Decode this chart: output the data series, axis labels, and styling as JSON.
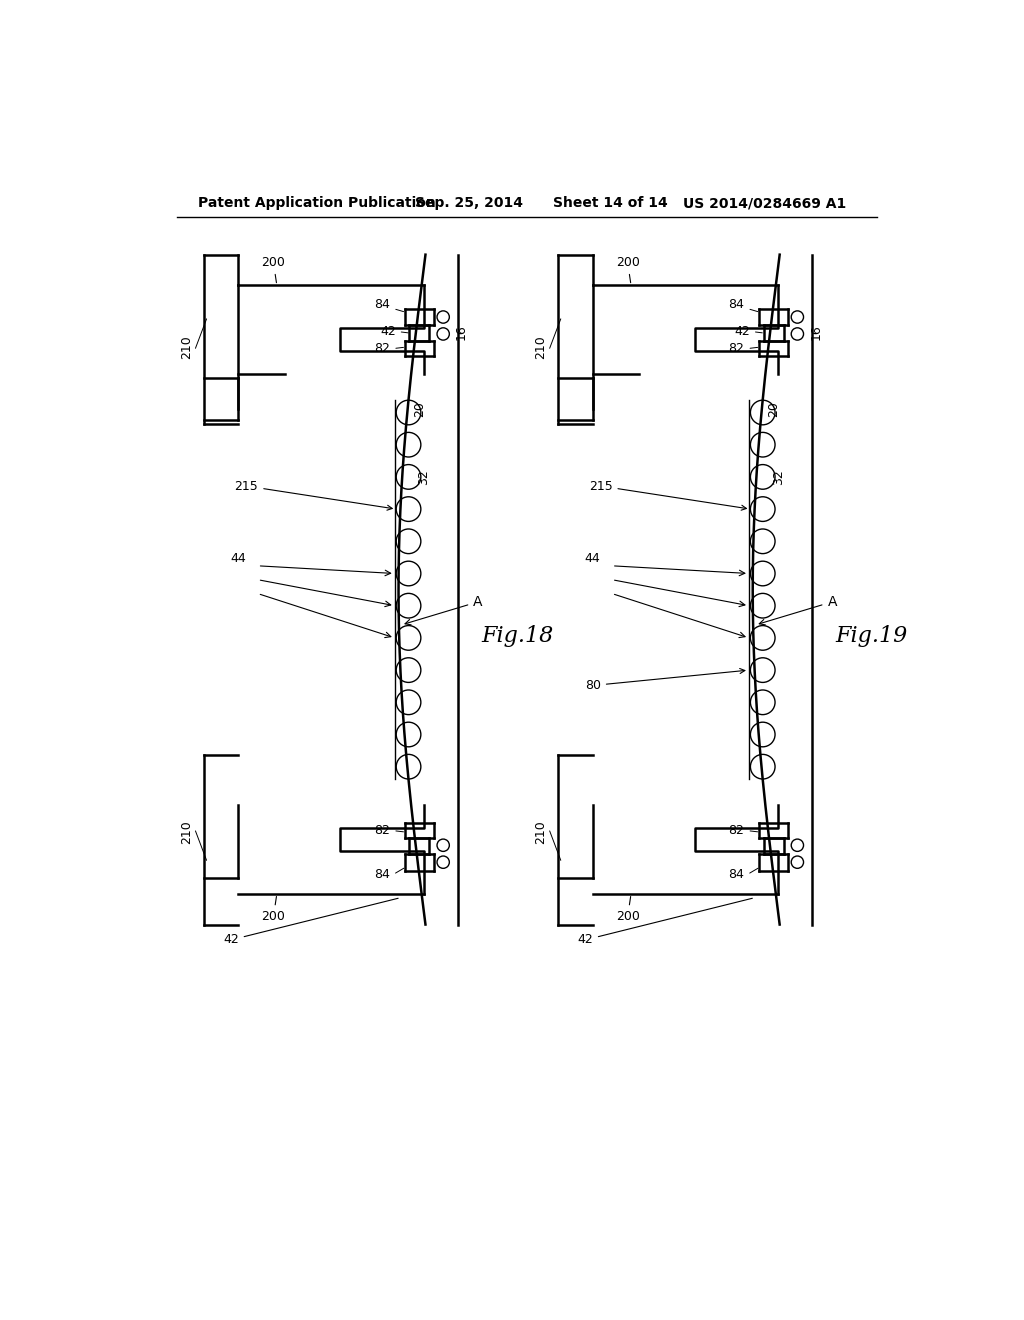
{
  "bg_color": "#ffffff",
  "header_text": "Patent Application Publication",
  "header_date": "Sep. 25, 2014",
  "header_sheet": "Sheet 14 of 14",
  "header_patent": "US 2014/0284669 A1",
  "fig18_label": "Fig.18",
  "fig19_label": "Fig.19",
  "line_color": "#000000",
  "lw_main": 1.8,
  "lw_thin": 1.0,
  "lw_thick": 2.5
}
